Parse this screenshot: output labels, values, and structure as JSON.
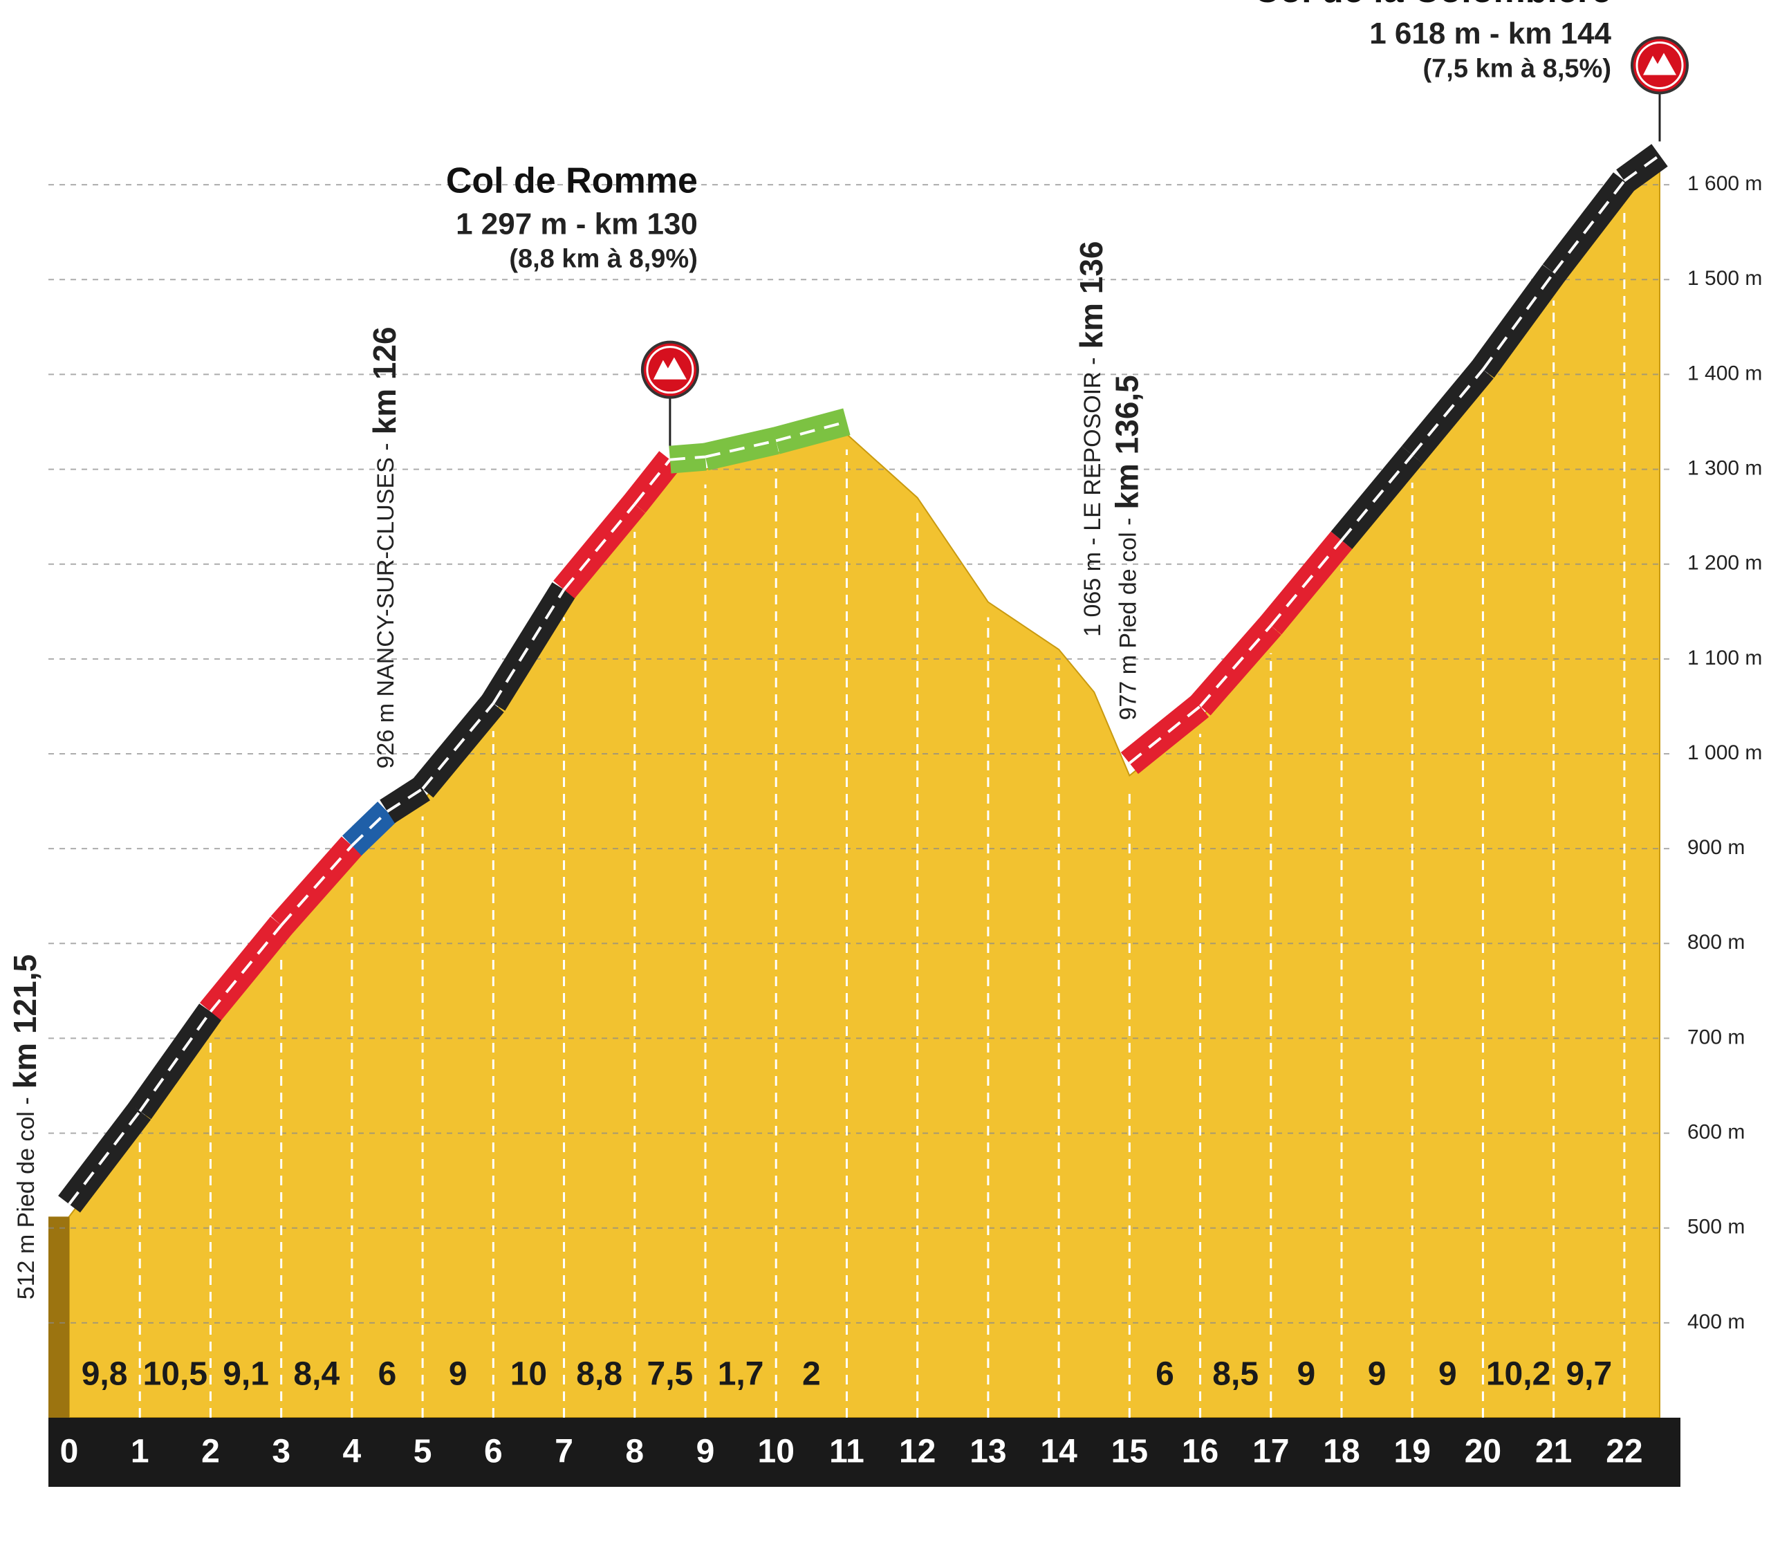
{
  "chart_data": {
    "type": "elevation_profile",
    "x": [
      0,
      1,
      2,
      3,
      4,
      4.5,
      5,
      6,
      7,
      8,
      8.5,
      9,
      10,
      11,
      12,
      13,
      14,
      14.5,
      15,
      16,
      17,
      18,
      19,
      20,
      21,
      22,
      22.5
    ],
    "values": [
      512,
      610,
      715,
      806,
      890,
      926,
      950,
      1040,
      1160,
      1250,
      1297,
      1300,
      1317,
      1337,
      1270,
      1160,
      1110,
      1065,
      977,
      1037,
      1122,
      1212,
      1302,
      1392,
      1494,
      1591,
      1618
    ],
    "road_colors": [
      "#222222",
      "#222222",
      "#e3202f",
      "#e3202f",
      "#1f5fa8",
      "#222222",
      "#222222",
      "#222222",
      "#e3202f",
      "#e3202f",
      "#7cc242",
      "#7cc242",
      "#7cc242",
      null,
      null,
      null,
      null,
      null,
      "#e3202f",
      "#e3202f",
      "#e3202f",
      "#222222",
      "#222222",
      "#222222",
      "#222222",
      "#222222"
    ],
    "fill_color": "#f2c230",
    "xlim": [
      0,
      22.5
    ],
    "xticks": [
      0,
      1,
      2,
      3,
      4,
      5,
      6,
      7,
      8,
      9,
      10,
      11,
      12,
      13,
      14,
      15,
      16,
      17,
      18,
      19,
      20,
      21,
      22
    ],
    "ylim": [
      300,
      1700
    ],
    "yticks": [
      {
        "value": 400,
        "label": "400 m"
      },
      {
        "value": 500,
        "label": "500 m"
      },
      {
        "value": 600,
        "label": "600 m"
      },
      {
        "value": 700,
        "label": "700 m"
      },
      {
        "value": 800,
        "label": "800 m"
      },
      {
        "value": 900,
        "label": "900 m"
      },
      {
        "value": 1000,
        "label": "1 000 m"
      },
      {
        "value": 1100,
        "label": "1 100 m"
      },
      {
        "value": 1200,
        "label": "1 200 m"
      },
      {
        "value": 1300,
        "label": "1 300 m"
      },
      {
        "value": 1400,
        "label": "1 400 m"
      },
      {
        "value": 1500,
        "label": "1 500 m"
      },
      {
        "value": 1600,
        "label": "1 600 m"
      }
    ],
    "grid": true,
    "gradients": {
      "values": [
        9.8,
        10.5,
        9.1,
        8.4,
        6,
        9,
        10,
        8.8,
        7.5,
        1.7,
        2,
        null,
        null,
        null,
        null,
        6,
        8.5,
        9,
        9,
        9,
        10.2,
        9.7
      ],
      "value_labels": [
        "9,8",
        "10,5",
        "9,1",
        "8,4",
        "6",
        "9",
        "10",
        "8,8",
        "7,5",
        "1,7",
        "2",
        null,
        null,
        null,
        null,
        "6",
        "8,5",
        "9",
        "9",
        "9",
        "10,2",
        "9,7"
      ]
    },
    "summits": [
      {
        "x": 8.5,
        "name": "Col de Romme",
        "detail": "1 297 m - km 130",
        "climb": "(8,8 km à 8,9%)"
      },
      {
        "x": 22.5,
        "name": "Col de la Colombière",
        "detail": "1 618 m - km 144",
        "climb": "(7,5 km à 8,5%)"
      }
    ],
    "places": [
      {
        "x": 0,
        "text": "512 m Pied de col -",
        "km": "km 121,5"
      },
      {
        "x": 4.5,
        "text": "926 m  NANCY-SUR-CLUSES -",
        "km": "km 126"
      },
      {
        "x": 14.5,
        "text": "1 065 m - LE REPOSOIR -",
        "km": "km 136"
      },
      {
        "x": 15,
        "text": "977 m Pied de col -",
        "km": "km 136,5"
      }
    ]
  }
}
